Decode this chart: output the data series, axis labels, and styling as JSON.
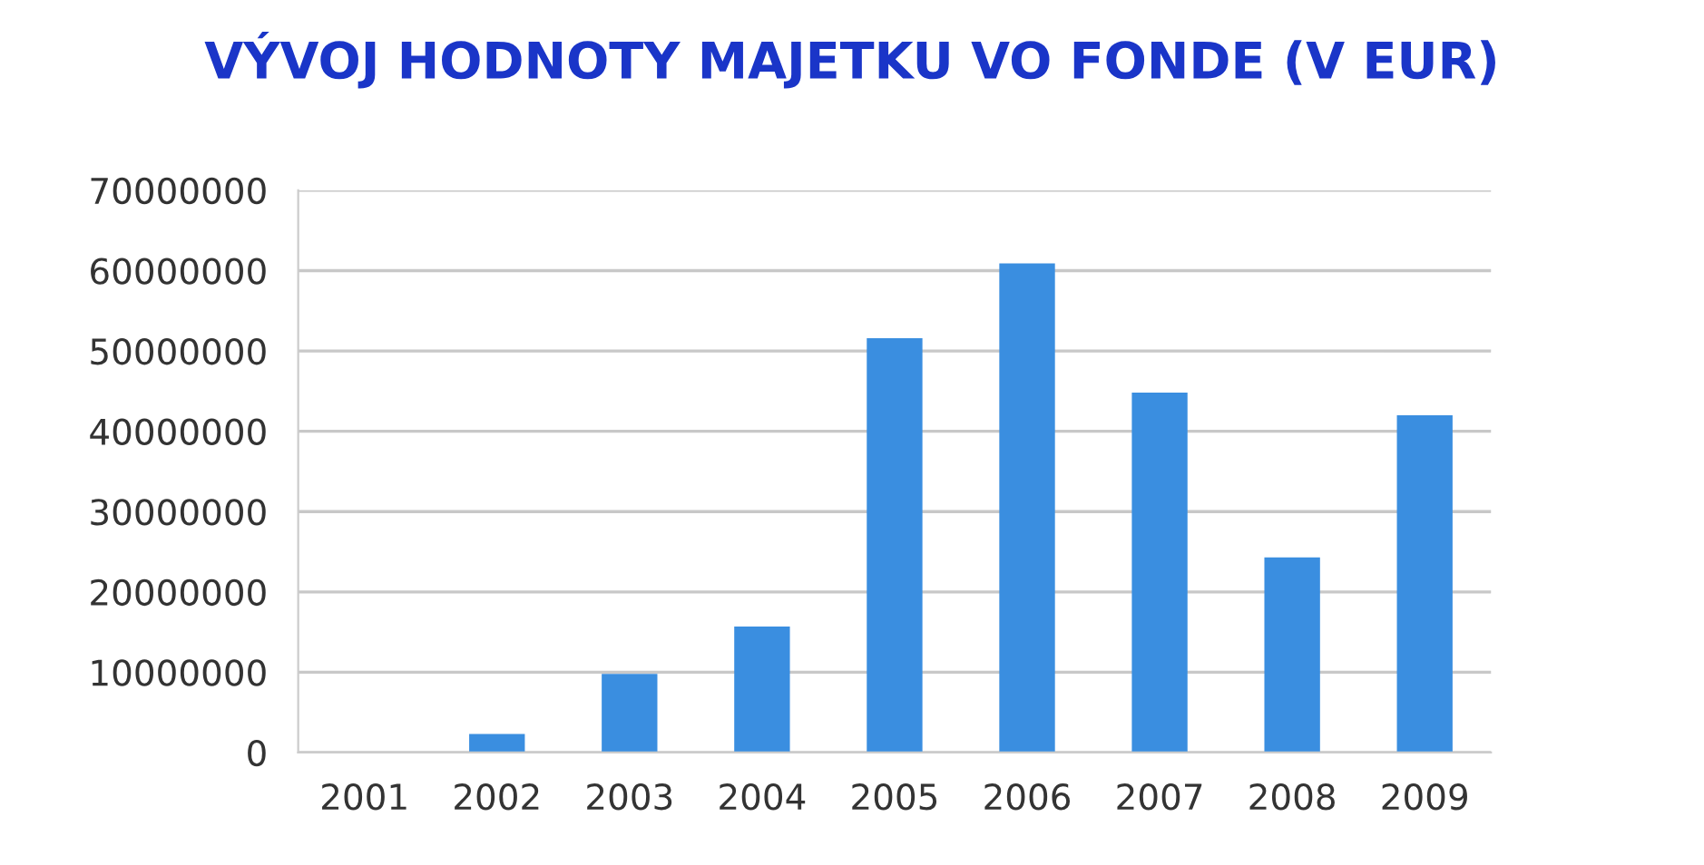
{
  "chart_data": {
    "type": "bar",
    "title": "VÝVOJ HODNOTY MAJETKU VO FONDE (V EUR)",
    "categories": [
      "2001",
      "2002",
      "2003",
      "2004",
      "2005",
      "2006",
      "2007",
      "2008",
      "2009"
    ],
    "values": [
      null,
      2300000,
      9800000,
      15700000,
      51600000,
      60900000,
      44800000,
      24300000,
      42000000
    ],
    "color": "#3a8ee0",
    "ylim": [
      0,
      70000000
    ],
    "yticks": [
      0,
      10000000,
      20000000,
      30000000,
      40000000,
      50000000,
      60000000,
      70000000
    ],
    "grid": "y"
  }
}
